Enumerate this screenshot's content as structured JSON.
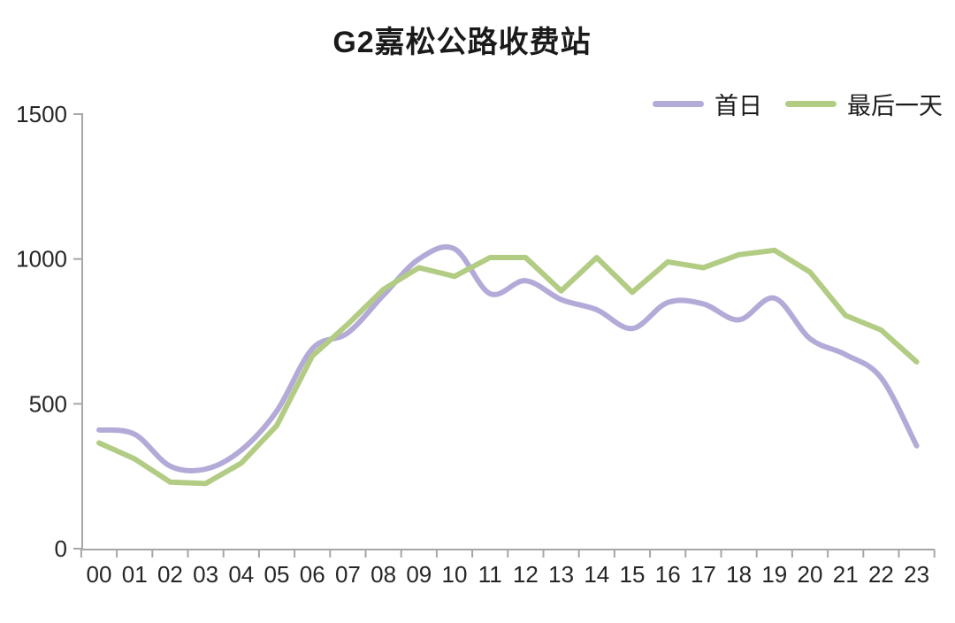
{
  "chart_data": {
    "type": "line",
    "title": "G2嘉松公路收费站",
    "xlabel": "",
    "ylabel": "",
    "ylim": [
      0,
      1500
    ],
    "y_tick_step": 500,
    "y_tick_labels": [
      "0",
      "500",
      "1000",
      "1500"
    ],
    "grid": false,
    "legend_position": "top-right",
    "categories": [
      "00",
      "01",
      "02",
      "03",
      "04",
      "05",
      "06",
      "07",
      "08",
      "09",
      "10",
      "11",
      "12",
      "13",
      "14",
      "15",
      "16",
      "17",
      "18",
      "19",
      "20",
      "21",
      "22",
      "23"
    ],
    "series": [
      {
        "name": "首日",
        "color": "#b4aad8",
        "smooth": true,
        "values": [
          410,
          395,
          285,
          275,
          340,
          475,
          690,
          745,
          875,
          1000,
          1035,
          880,
          925,
          860,
          825,
          760,
          850,
          845,
          790,
          865,
          725,
          670,
          590,
          355
        ]
      },
      {
        "name": "最后一天",
        "color": "#b2cc84",
        "smooth": false,
        "values": [
          365,
          310,
          230,
          225,
          295,
          425,
          665,
          775,
          895,
          970,
          940,
          1005,
          1005,
          890,
          1005,
          885,
          990,
          970,
          1015,
          1030,
          955,
          805,
          755,
          645
        ]
      }
    ],
    "axis_color": "#a6a6a6",
    "tick_label_color": "#262626"
  }
}
